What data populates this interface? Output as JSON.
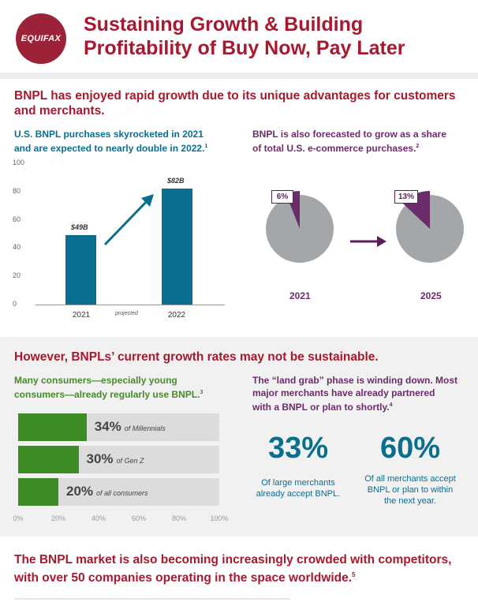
{
  "header": {
    "logo_text": "EQUIFAX",
    "title_line1": "Sustaining Growth & Building",
    "title_line2": "Profitability of Buy Now, Pay Later"
  },
  "section1": {
    "heading": "BNPL has enjoyed rapid growth due to its unique advantages for customers and merchants.",
    "left_sub_line1": "U.S. BNPL purchases skyrocketed in 2021",
    "left_sub_line2": "and are expected to nearly double in 2022.",
    "left_sup": "1",
    "right_sub_line1": "BNPL is also forecasted to grow as a share",
    "right_sub_line2": "of total U.S. e-commerce purchases.",
    "right_sup": "2",
    "projected_label": "projected",
    "pies": [
      {
        "year": "2021",
        "label": "6%",
        "value": 6
      },
      {
        "year": "2025",
        "label": "13%",
        "value": 13
      }
    ]
  },
  "chart_data": {
    "type": "bar",
    "categories": [
      "2021",
      "2022"
    ],
    "values": [
      49,
      82
    ],
    "data_labels": [
      "$49B",
      "$82B"
    ],
    "yticks": [
      "0",
      "20",
      "40",
      "60",
      "80",
      "100"
    ],
    "ylim": [
      0,
      100
    ],
    "title": "U.S. BNPL purchases skyrocketed in 2021 and are expected to nearly double in 2022.",
    "xlabel": "",
    "ylabel": ""
  },
  "section2": {
    "heading": "However, BNPLs’ current growth rates may not be sustainable.",
    "left_sub_line1": "Many consumers—especially young",
    "left_sub_line2": "consumers—already regularly use BNPL.",
    "left_sup": "3",
    "bars": [
      {
        "value": 34,
        "label": "34%",
        "desc": "of Millennials"
      },
      {
        "value": 30,
        "label": "30%",
        "desc": "of Gen Z"
      },
      {
        "value": 20,
        "label": "20%",
        "desc": "of all consumers"
      }
    ],
    "axis": [
      "0%",
      "20%",
      "40%",
      "60%",
      "80%",
      "100%"
    ],
    "right_sub_line1": "The “land grab” phase is winding down. Most",
    "right_sub_line2": "major merchants have already partnered",
    "right_sub_line3": "with a BNPL or plan to shortly.",
    "right_sup": "4",
    "stat1_num": "33%",
    "stat1_cap_line1": "Of large merchants",
    "stat1_cap_line2": "already accept BNPL.",
    "stat2_num": "60%",
    "stat2_cap_line1": "Of all merchants accept",
    "stat2_cap_line2": "BNPL or plan to within",
    "stat2_cap_line3": "the next year."
  },
  "section3": {
    "heading_line1": "The BNPL market is also becoming increasingly crowded with competitors,",
    "heading_line2": "with over 50 companies operating in the space worldwide.",
    "sup": "5"
  },
  "colors": {
    "brand_red": "#a6192e",
    "teal": "#0a6e8f",
    "purple": "#6b2c6b",
    "green": "#3d8b24",
    "pie_gray": "#a3a7aa"
  }
}
